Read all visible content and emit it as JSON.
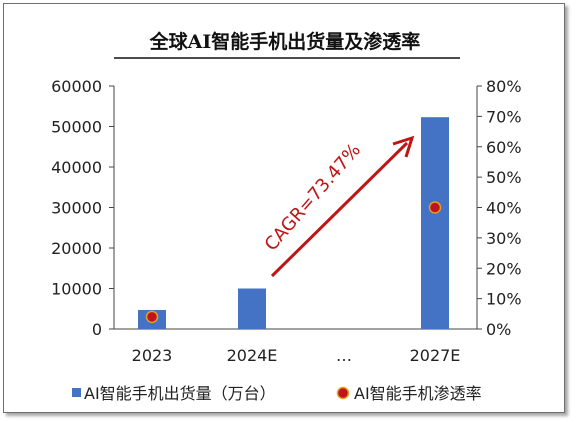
{
  "chart_data": {
    "type": "bar",
    "title": "全球AI智能手机出货量及渗透率",
    "categories": [
      "2023",
      "2024E",
      "…",
      "2027E"
    ],
    "series": [
      {
        "name": "AI智能手机出货量（万台）",
        "type": "bar",
        "axis": "left",
        "color": "#4472c4",
        "values": [
          4700,
          10000,
          null,
          52300
        ]
      },
      {
        "name": "AI智能手机渗透率",
        "type": "scatter",
        "axis": "right",
        "color": "#c0141c",
        "values": [
          0.04,
          null,
          null,
          0.4
        ]
      }
    ],
    "y_left": {
      "range": [
        0,
        60000
      ],
      "ticks": [
        "0",
        "10000",
        "20000",
        "30000",
        "40000",
        "50000",
        "60000"
      ]
    },
    "y_right": {
      "range": [
        0,
        0.8
      ],
      "ticks": [
        "0%",
        "10%",
        "20%",
        "30%",
        "40%",
        "50%",
        "60%",
        "70%",
        "80%"
      ]
    },
    "grid": false,
    "legend_position": "bottom",
    "annotation": {
      "text": "CAGR=73.47%",
      "color": "#c01515"
    }
  }
}
